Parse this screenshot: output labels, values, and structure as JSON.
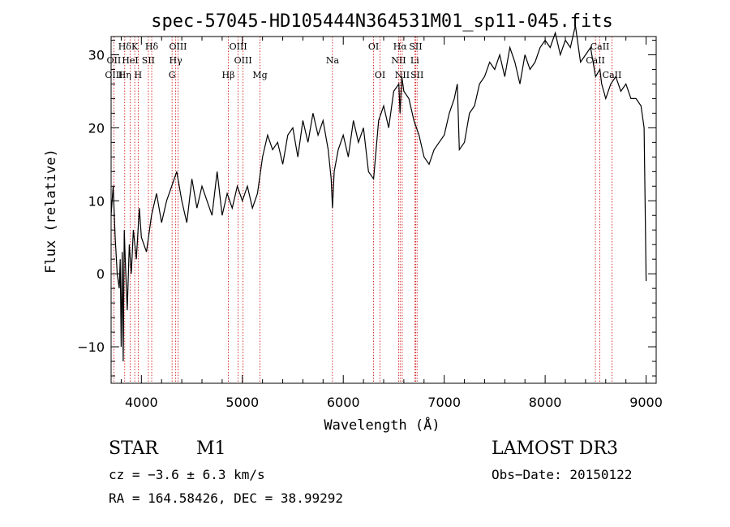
{
  "chart_data": {
    "type": "line",
    "title": "spec-57045-HD105444N364531M01_sp11-045.fits",
    "xlabel": "Wavelength (Å)",
    "ylabel": "Flux (relative)",
    "xlim": [
      3700,
      9100
    ],
    "ylim": [
      -15,
      32.5
    ],
    "x_ticks": [
      4000,
      5000,
      6000,
      7000,
      8000,
      9000
    ],
    "y_ticks": [
      -10,
      0,
      10,
      20,
      30
    ],
    "x_tick_labels": [
      "4000",
      "5000",
      "6000",
      "7000",
      "8000",
      "9000"
    ],
    "y_tick_labels": [
      "−10",
      "0",
      "10",
      "20",
      "30"
    ],
    "series": [
      {
        "name": "flux",
        "x": [
          3700,
          3720,
          3740,
          3760,
          3780,
          3790,
          3800,
          3810,
          3820,
          3830,
          3840,
          3860,
          3880,
          3900,
          3920,
          3950,
          3980,
          4000,
          4050,
          4100,
          4150,
          4200,
          4250,
          4300,
          4350,
          4400,
          4450,
          4500,
          4550,
          4600,
          4650,
          4700,
          4750,
          4800,
          4850,
          4900,
          4950,
          5000,
          5050,
          5100,
          5150,
          5200,
          5250,
          5300,
          5350,
          5400,
          5450,
          5500,
          5550,
          5600,
          5650,
          5700,
          5750,
          5800,
          5850,
          5880,
          5893,
          5910,
          5950,
          6000,
          6050,
          6100,
          6150,
          6200,
          6250,
          6300,
          6350,
          6400,
          6450,
          6500,
          6550,
          6562,
          6580,
          6600,
          6650,
          6700,
          6750,
          6800,
          6850,
          6900,
          6950,
          7000,
          7050,
          7100,
          7130,
          7150,
          7200,
          7250,
          7300,
          7350,
          7400,
          7450,
          7500,
          7550,
          7600,
          7650,
          7700,
          7750,
          7800,
          7850,
          7900,
          7950,
          8000,
          8050,
          8100,
          8150,
          8200,
          8250,
          8300,
          8350,
          8400,
          8450,
          8500,
          8542,
          8560,
          8600,
          8650,
          8700,
          8750,
          8800,
          8850,
          8900,
          8950,
          8980,
          8990,
          9000
        ],
        "y": [
          8,
          12,
          5,
          0,
          -2,
          2,
          -10,
          3,
          -12,
          6,
          2,
          -5,
          4,
          0,
          6,
          2,
          9,
          5,
          3,
          8,
          11,
          7,
          10,
          12,
          14,
          10,
          7,
          13,
          9,
          12,
          10,
          8,
          14,
          8,
          11,
          9,
          12,
          10,
          12,
          9,
          11,
          16,
          19,
          17,
          18,
          15,
          19,
          20,
          16,
          21,
          18,
          22,
          19,
          21,
          17,
          13,
          9,
          14,
          17,
          19,
          16,
          21,
          18,
          20,
          14,
          13,
          21,
          23,
          20,
          25,
          26,
          22,
          27,
          25,
          24,
          21,
          19,
          16,
          15,
          17,
          18,
          19,
          22,
          24,
          26,
          17,
          18,
          22,
          23,
          26,
          27,
          29,
          28,
          30,
          27,
          31,
          29,
          26,
          30,
          28,
          29,
          31,
          32,
          31,
          33,
          30,
          32,
          31,
          34,
          29,
          30,
          31,
          27,
          28,
          26,
          24,
          26,
          27,
          25,
          26,
          24,
          24,
          23,
          20,
          10,
          -1
        ]
      }
    ],
    "line_labels": [
      {
        "label": "Hδ",
        "x": 3835,
        "wave": 3835,
        "row": 0
      },
      {
        "label": "OII",
        "x": 3727,
        "wave": 3727,
        "row": 1
      },
      {
        "label": "OIII",
        "x": 3727,
        "wave": 3727,
        "row": 2
      },
      {
        "label": "K",
        "x": 3934,
        "wave": 3934,
        "row": 0
      },
      {
        "label": "HeI",
        "x": 3889,
        "wave": 3889,
        "row": 1
      },
      {
        "label": "Hη",
        "x": 3835,
        "wave": 3835,
        "row": 2
      },
      {
        "label": "H",
        "x": 3968,
        "wave": 3968,
        "row": 2
      },
      {
        "label": "SII",
        "x": 4069,
        "wave": 4069,
        "row": 1
      },
      {
        "label": "Hδ",
        "x": 4102,
        "wave": 4102,
        "row": 0
      },
      {
        "label": "OIII",
        "x": 4363,
        "wave": 4363,
        "row": 0
      },
      {
        "label": "Hγ",
        "x": 4340,
        "wave": 4340,
        "row": 1
      },
      {
        "label": "G",
        "x": 4304,
        "wave": 4304,
        "row": 2
      },
      {
        "label": "Hβ",
        "x": 4861,
        "wave": 4861,
        "row": 2
      },
      {
        "label": "OIII",
        "x": 4959,
        "wave": 4959,
        "row": 0
      },
      {
        "label": "OIII",
        "x": 5007,
        "wave": 5007,
        "row": 1
      },
      {
        "label": "Mg",
        "x": 5175,
        "wave": 5175,
        "row": 2
      },
      {
        "label": "Na",
        "x": 5893,
        "wave": 5893,
        "row": 1
      },
      {
        "label": "OI",
        "x": 6300,
        "wave": 6300,
        "row": 0
      },
      {
        "label": "OI",
        "x": 6364,
        "wave": 6364,
        "row": 2
      },
      {
        "label": "Hα",
        "x": 6563,
        "wave": 6563,
        "row": 0
      },
      {
        "label": "NII",
        "x": 6548,
        "wave": 6548,
        "row": 1
      },
      {
        "label": "NII",
        "x": 6584,
        "wave": 6584,
        "row": 2
      },
      {
        "label": "SII",
        "x": 6717,
        "wave": 6717,
        "row": 0
      },
      {
        "label": "Li",
        "x": 6708,
        "wave": 6708,
        "row": 1
      },
      {
        "label": "SII",
        "x": 6731,
        "wave": 6731,
        "row": 2
      },
      {
        "label": "CaII",
        "x": 8542,
        "wave": 8542,
        "row": 0
      },
      {
        "label": "CaII",
        "x": 8498,
        "wave": 8498,
        "row": 1
      },
      {
        "label": "CaII",
        "x": 8662,
        "wave": 8662,
        "row": 2
      }
    ]
  },
  "info": {
    "object_class": "STAR",
    "subclass": "M1",
    "survey": "LAMOST DR3",
    "cz": "cz = −3.6 ± 6.3 km/s",
    "obs_date": "Obs−Date: 20150122",
    "coords": "RA = 164.58426, DEC =  38.99292"
  },
  "colors": {
    "line": "#000000",
    "marker": "#cc0000"
  }
}
